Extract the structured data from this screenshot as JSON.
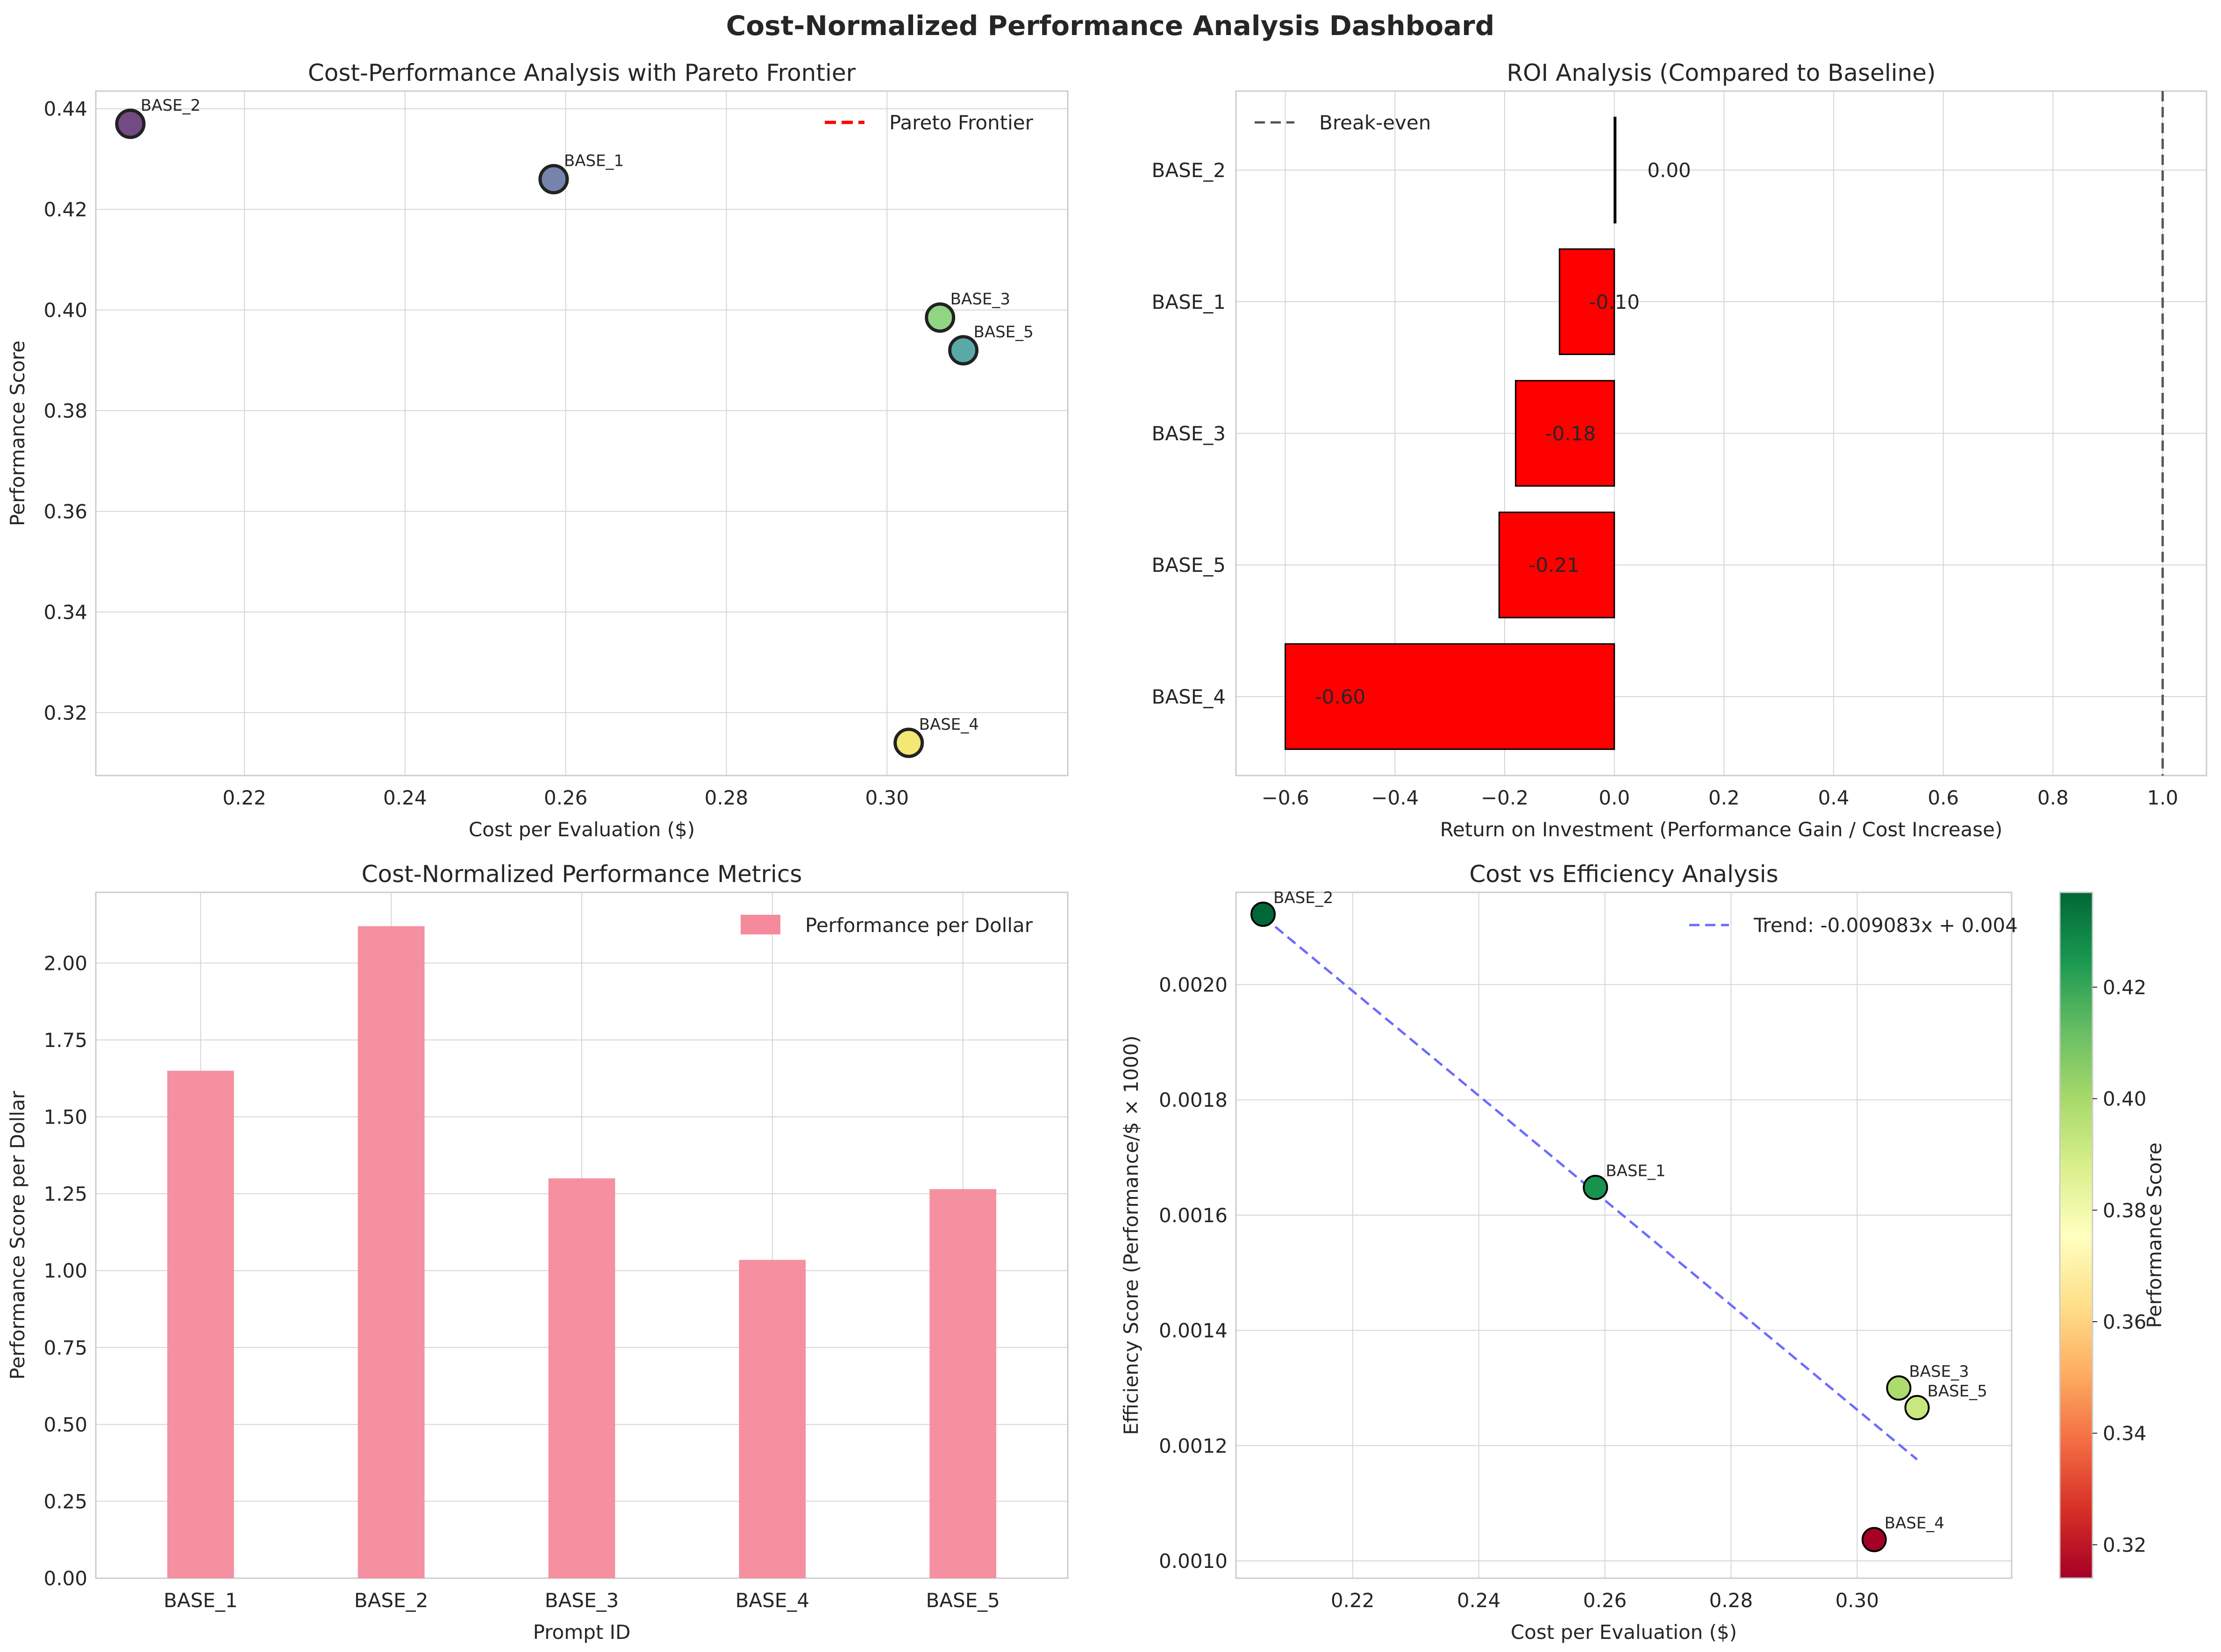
{
  "title": "Cost-Normalized Performance Analysis Dashboard",
  "colors": {
    "pareto": "#ff0000",
    "roi_bar": "#ff0000",
    "ppd_bar": "#f48a9c",
    "trend": "#6b6bff",
    "breakeven": "#555555",
    "grid": "#d6d6d6"
  },
  "chart_data": [
    {
      "id": "scatter",
      "type": "scatter",
      "title": "Cost-Performance Analysis with Pareto Frontier",
      "xlabel": "Cost per Evaluation ($)",
      "ylabel": "Performance Score",
      "xlim": [
        0.2015,
        0.3225
      ],
      "ylim": [
        0.3075,
        0.4435
      ],
      "xticks": [
        "0.22",
        "0.24",
        "0.26",
        "0.28",
        "0.30"
      ],
      "yticks": [
        "0.32",
        "0.34",
        "0.36",
        "0.38",
        "0.40",
        "0.42",
        "0.44"
      ],
      "grid": true,
      "legend": {
        "position": "top-right",
        "entries": [
          {
            "label": "Pareto Frontier"
          }
        ]
      },
      "points": [
        {
          "label": "BASE_2",
          "x": 0.2058,
          "y": 0.437,
          "color": "#5a2a6e"
        },
        {
          "label": "BASE_1",
          "x": 0.2585,
          "y": 0.426,
          "color": "#5d6f9e"
        },
        {
          "label": "BASE_3",
          "x": 0.3066,
          "y": 0.3985,
          "color": "#7ecf6d"
        },
        {
          "label": "BASE_5",
          "x": 0.3095,
          "y": 0.392,
          "color": "#3d9a98"
        },
        {
          "label": "BASE_4",
          "x": 0.3027,
          "y": 0.314,
          "color": "#f2e35a"
        }
      ]
    },
    {
      "id": "roi",
      "type": "bar",
      "orientation": "horizontal",
      "title": "ROI Analysis (Compared to Baseline)",
      "xlabel": "Return on Investment (Performance Gain / Cost Increase)",
      "ylabel": "",
      "xlim": [
        -0.69,
        1.08
      ],
      "xticks": [
        "−0.6",
        "−0.4",
        "−0.2",
        "0.0",
        "0.2",
        "0.4",
        "0.6",
        "0.8",
        "1.0"
      ],
      "grid": true,
      "legend": {
        "position": "top-left",
        "entries": [
          {
            "label": "Break-even"
          }
        ]
      },
      "breakeven": 1.0,
      "categories": [
        "BASE_2",
        "BASE_1",
        "BASE_3",
        "BASE_5",
        "BASE_4"
      ],
      "values": [
        0.0,
        -0.1,
        -0.18,
        -0.21,
        -0.6
      ],
      "value_labels": [
        "0.00",
        "-0.10",
        "-0.18",
        "-0.21",
        "-0.60"
      ]
    },
    {
      "id": "ppd",
      "type": "bar",
      "title": "Cost-Normalized Performance Metrics",
      "xlabel": "Prompt ID",
      "ylabel": "Performance Score per Dollar",
      "ylim": [
        0,
        2.23
      ],
      "yticks": [
        "0.00",
        "0.25",
        "0.50",
        "0.75",
        "1.00",
        "1.25",
        "1.50",
        "1.75",
        "2.00"
      ],
      "grid": true,
      "legend": {
        "position": "top-right",
        "entries": [
          {
            "label": "Performance per Dollar"
          }
        ]
      },
      "categories": [
        "BASE_1",
        "BASE_2",
        "BASE_3",
        "BASE_4",
        "BASE_5"
      ],
      "values": [
        1.65,
        2.12,
        1.3,
        1.035,
        1.265
      ]
    },
    {
      "id": "efficiency",
      "type": "scatter",
      "title": "Cost vs Efficiency Analysis",
      "xlabel": "Cost per Evaluation ($)",
      "ylabel": "Efficiency Score (Performance/$ × 1000)",
      "xlim": [
        0.2015,
        0.3245
      ],
      "ylim": [
        0.00097,
        0.00216
      ],
      "xticks": [
        "0.22",
        "0.24",
        "0.26",
        "0.28",
        "0.30"
      ],
      "yticks": [
        "0.0010",
        "0.0012",
        "0.0014",
        "0.0016",
        "0.0018",
        "0.0020"
      ],
      "grid": true,
      "legend": {
        "position": "top-right",
        "entries": [
          {
            "label": "Trend: -0.009083x + 0.004"
          }
        ]
      },
      "trend": {
        "slope": -0.009083,
        "x_range": [
          0.2058,
          0.3095
        ]
      },
      "colorbar": {
        "label": "Performance Score",
        "range": [
          0.314,
          0.437
        ],
        "ticks": [
          "0.32",
          "0.34",
          "0.36",
          "0.38",
          "0.40",
          "0.42"
        ],
        "colormap": "RdYlGn"
      },
      "points": [
        {
          "label": "BASE_2",
          "x": 0.2058,
          "y": 0.002122,
          "perf": 0.437
        },
        {
          "label": "BASE_1",
          "x": 0.2585,
          "y": 0.001648,
          "perf": 0.426
        },
        {
          "label": "BASE_3",
          "x": 0.3066,
          "y": 0.0013,
          "perf": 0.3985
        },
        {
          "label": "BASE_5",
          "x": 0.3095,
          "y": 0.001266,
          "perf": 0.392
        },
        {
          "label": "BASE_4",
          "x": 0.3027,
          "y": 0.001037,
          "perf": 0.314
        }
      ]
    }
  ]
}
